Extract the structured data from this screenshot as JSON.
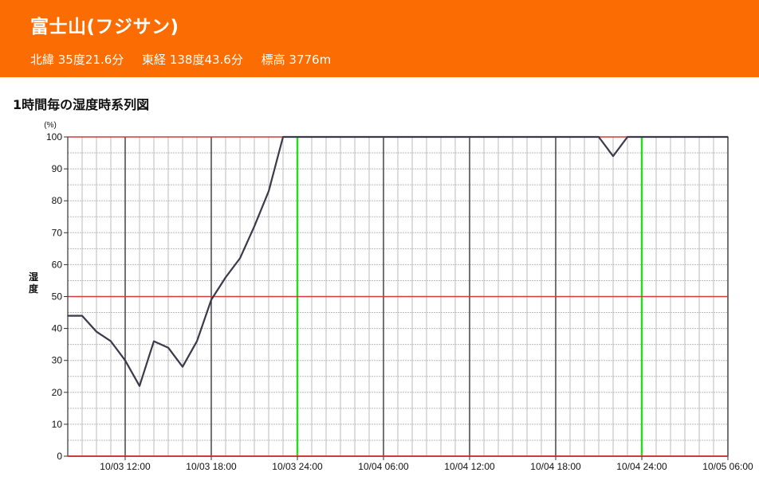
{
  "station": {
    "name": "富士山(フジサン)",
    "lat_label": "北緯 35度21.6分",
    "lon_label": "東経 138度43.6分",
    "alt_label": "標高 3776m"
  },
  "section_title": "1時間毎の湿度時系列図",
  "colors": {
    "header_bg": "#fb6c02",
    "line": "#3a3a4a",
    "ref_line": "#d03a3a",
    "midnight_line": "#22dd22",
    "grid_minor": "#bbbbbb",
    "grid_major": "#444444"
  },
  "chart_data": {
    "type": "line",
    "unit_label": "(%)",
    "ylabel": "湿度",
    "ylim": [
      0,
      100
    ],
    "yticks": [
      0,
      10,
      20,
      30,
      40,
      50,
      60,
      70,
      80,
      90,
      100
    ],
    "x_start": "10/03 08:00",
    "x_end": "10/05 06:00",
    "xtick_labels": [
      "10/03 12:00",
      "10/03 18:00",
      "10/03 24:00",
      "10/04 06:00",
      "10/04 12:00",
      "10/04 18:00",
      "10/04 24:00",
      "10/05 06:00"
    ],
    "reference_lines": [
      50,
      100
    ],
    "series": [
      {
        "x": [
          "10/03 08:00",
          "10/03 09:00",
          "10/03 10:00",
          "10/03 11:00",
          "10/03 12:00",
          "10/03 13:00",
          "10/03 14:00",
          "10/03 15:00",
          "10/03 16:00",
          "10/03 17:00",
          "10/03 18:00",
          "10/03 19:00",
          "10/03 20:00",
          "10/03 21:00",
          "10/03 22:00",
          "10/03 23:00",
          "10/04 00:00",
          "10/04 01:00",
          "10/04 02:00",
          "10/04 03:00",
          "10/04 04:00",
          "10/04 05:00",
          "10/04 06:00",
          "10/04 07:00",
          "10/04 08:00",
          "10/04 09:00",
          "10/04 10:00",
          "10/04 11:00",
          "10/04 12:00",
          "10/04 13:00",
          "10/04 14:00",
          "10/04 15:00",
          "10/04 16:00",
          "10/04 17:00",
          "10/04 18:00",
          "10/04 19:00",
          "10/04 20:00",
          "10/04 21:00",
          "10/04 22:00",
          "10/04 23:00",
          "10/05 00:00",
          "10/05 01:00",
          "10/05 02:00",
          "10/05 03:00",
          "10/05 04:00",
          "10/05 05:00",
          "10/05 06:00"
        ],
        "values": [
          44,
          44,
          39,
          36,
          30,
          22,
          36,
          34,
          28,
          36,
          49,
          56,
          62,
          72,
          83,
          100,
          100,
          100,
          100,
          100,
          100,
          100,
          100,
          100,
          100,
          100,
          100,
          100,
          100,
          100,
          100,
          100,
          100,
          100,
          100,
          100,
          100,
          100,
          94,
          100,
          100,
          100,
          100,
          100,
          100,
          100,
          100
        ]
      }
    ]
  }
}
